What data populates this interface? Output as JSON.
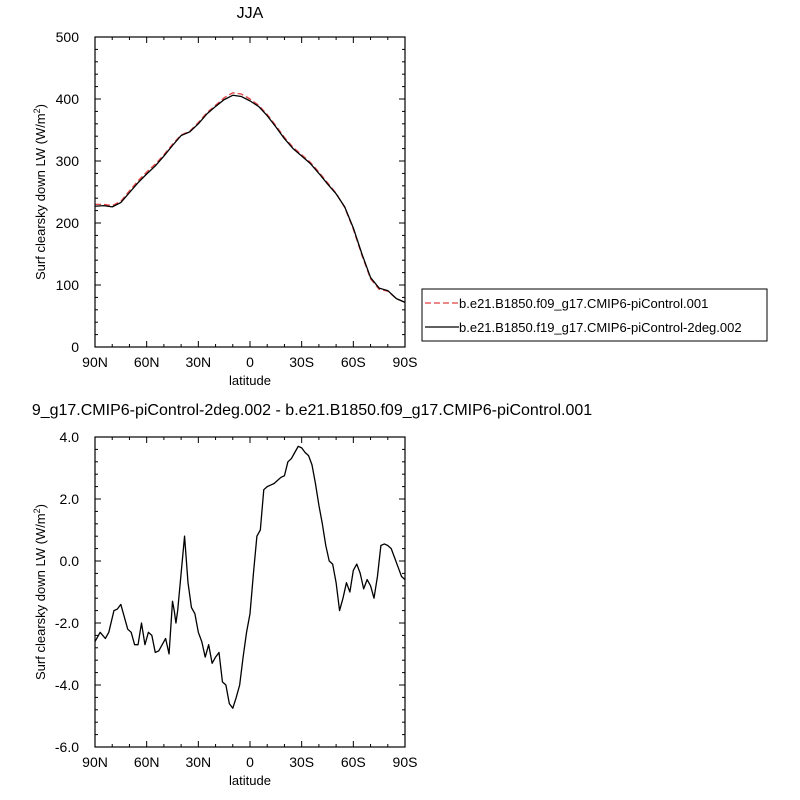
{
  "chart_data": [
    {
      "type": "line",
      "title": "JJA",
      "xlabel": "latitude",
      "ylabel": "Surf clearsky down LW (W/m",
      "ylabel_sup": "2",
      "ylabel_close": ")",
      "xlim": [
        90,
        -90
      ],
      "ylim": [
        0,
        500
      ],
      "x_ticks": [
        90,
        60,
        30,
        0,
        -30,
        -60,
        -90
      ],
      "x_tick_labels": [
        "90N",
        "60N",
        "30N",
        "0",
        "30S",
        "60S",
        "90S"
      ],
      "y_ticks": [
        0,
        100,
        200,
        300,
        400,
        500
      ],
      "y_tick_labels": [
        "0",
        "100",
        "200",
        "300",
        "400",
        "500"
      ],
      "legend_position": "right",
      "series": [
        {
          "name": "b.e21.B1850.f09_g17.CMIP6-piControl.001",
          "color": "#e04040",
          "dash": "dashed",
          "x": [
            90,
            85,
            80,
            75,
            70,
            65,
            60,
            55,
            50,
            45,
            40,
            35,
            30,
            25,
            20,
            15,
            10,
            5,
            0,
            -5,
            -10,
            -15,
            -20,
            -25,
            -30,
            -35,
            -40,
            -45,
            -50,
            -55,
            -60,
            -65,
            -70,
            -75,
            -80,
            -85,
            -90
          ],
          "values": [
            230,
            230,
            228,
            235,
            252,
            268,
            282,
            295,
            310,
            327,
            342,
            348,
            362,
            378,
            390,
            402,
            410,
            408,
            400,
            390,
            375,
            357,
            338,
            322,
            310,
            298,
            282,
            265,
            248,
            225,
            190,
            148,
            110,
            93,
            90,
            78,
            72
          ]
        },
        {
          "name": "b.e21.B1850.f19_g17.CMIP6-piControl-2deg.002",
          "color": "#000000",
          "dash": "solid",
          "x": [
            90,
            85,
            80,
            75,
            70,
            65,
            60,
            55,
            50,
            45,
            40,
            35,
            30,
            25,
            20,
            15,
            10,
            5,
            0,
            -5,
            -10,
            -15,
            -20,
            -25,
            -30,
            -35,
            -40,
            -45,
            -50,
            -55,
            -60,
            -65,
            -70,
            -75,
            -80,
            -85,
            -90
          ],
          "values": [
            227,
            228,
            226,
            233,
            249,
            265,
            279,
            292,
            308,
            325,
            341,
            347,
            360,
            376,
            388,
            399,
            406,
            404,
            397,
            388,
            373,
            355,
            336,
            320,
            308,
            296,
            280,
            263,
            247,
            226,
            192,
            150,
            112,
            95,
            91,
            78,
            72
          ]
        }
      ]
    },
    {
      "type": "line",
      "title": "9_g17.CMIP6-piControl-2deg.002 - b.e21.B1850.f09_g17.CMIP6-piControl.001",
      "xlabel": "latitude",
      "ylabel": "Surf clearsky down LW (W/m",
      "ylabel_sup": "2",
      "ylabel_close": ")",
      "xlim": [
        90,
        -90
      ],
      "ylim": [
        -6,
        4
      ],
      "x_ticks": [
        90,
        60,
        30,
        0,
        -30,
        -60,
        -90
      ],
      "x_tick_labels": [
        "90N",
        "60N",
        "30N",
        "0",
        "30S",
        "60S",
        "90S"
      ],
      "y_ticks": [
        -6,
        -4,
        -2,
        0,
        2,
        4
      ],
      "y_tick_labels": [
        "-6.0",
        "-4.0",
        "-2.0",
        "0.0",
        "2.0",
        "4.0"
      ],
      "series": [
        {
          "color": "#000000",
          "dash": "solid",
          "x": [
            90,
            87,
            84,
            82,
            79,
            77,
            75,
            73,
            71,
            69,
            67,
            65,
            63,
            61,
            59,
            57,
            55,
            53,
            51,
            49,
            47,
            45,
            44,
            43,
            42,
            40,
            38,
            36,
            34,
            32,
            30,
            28,
            26,
            24,
            22,
            20,
            18,
            16,
            14,
            12,
            10,
            8,
            6,
            4,
            2,
            0,
            -2,
            -4,
            -6,
            -8,
            -10,
            -12,
            -14,
            -16,
            -18,
            -20,
            -22,
            -24,
            -26,
            -28,
            -30,
            -32,
            -34,
            -36,
            -38,
            -40,
            -42,
            -44,
            -46,
            -48,
            -50,
            -52,
            -54,
            -56,
            -58,
            -60,
            -62,
            -64,
            -66,
            -68,
            -70,
            -72,
            -74,
            -76,
            -78,
            -80,
            -82,
            -84,
            -86,
            -88,
            -90
          ],
          "values": [
            -2.6,
            -2.3,
            -2.5,
            -2.3,
            -1.6,
            -1.55,
            -1.4,
            -1.8,
            -2.2,
            -2.3,
            -2.7,
            -2.7,
            -2.0,
            -2.7,
            -2.3,
            -2.4,
            -2.95,
            -2.9,
            -2.7,
            -2.5,
            -3.0,
            -1.3,
            -1.6,
            -2.0,
            -1.6,
            -0.4,
            0.8,
            -0.7,
            -1.5,
            -1.7,
            -2.3,
            -2.6,
            -3.1,
            -2.7,
            -3.3,
            -3.1,
            -2.95,
            -3.9,
            -4.0,
            -4.6,
            -4.75,
            -4.4,
            -4.0,
            -3.1,
            -2.3,
            -1.7,
            -0.4,
            0.8,
            1.0,
            2.3,
            2.4,
            2.45,
            2.5,
            2.6,
            2.7,
            2.75,
            3.2,
            3.3,
            3.5,
            3.7,
            3.65,
            3.5,
            3.4,
            3.1,
            2.5,
            1.8,
            1.2,
            0.5,
            0.0,
            -0.1,
            -0.7,
            -1.6,
            -1.2,
            -0.7,
            -1.0,
            -0.3,
            -0.1,
            -0.4,
            -0.9,
            -0.6,
            -0.8,
            -1.2,
            -0.5,
            0.5,
            0.55,
            0.5,
            0.4,
            0.1,
            -0.2,
            -0.5,
            -0.6
          ]
        }
      ]
    }
  ]
}
